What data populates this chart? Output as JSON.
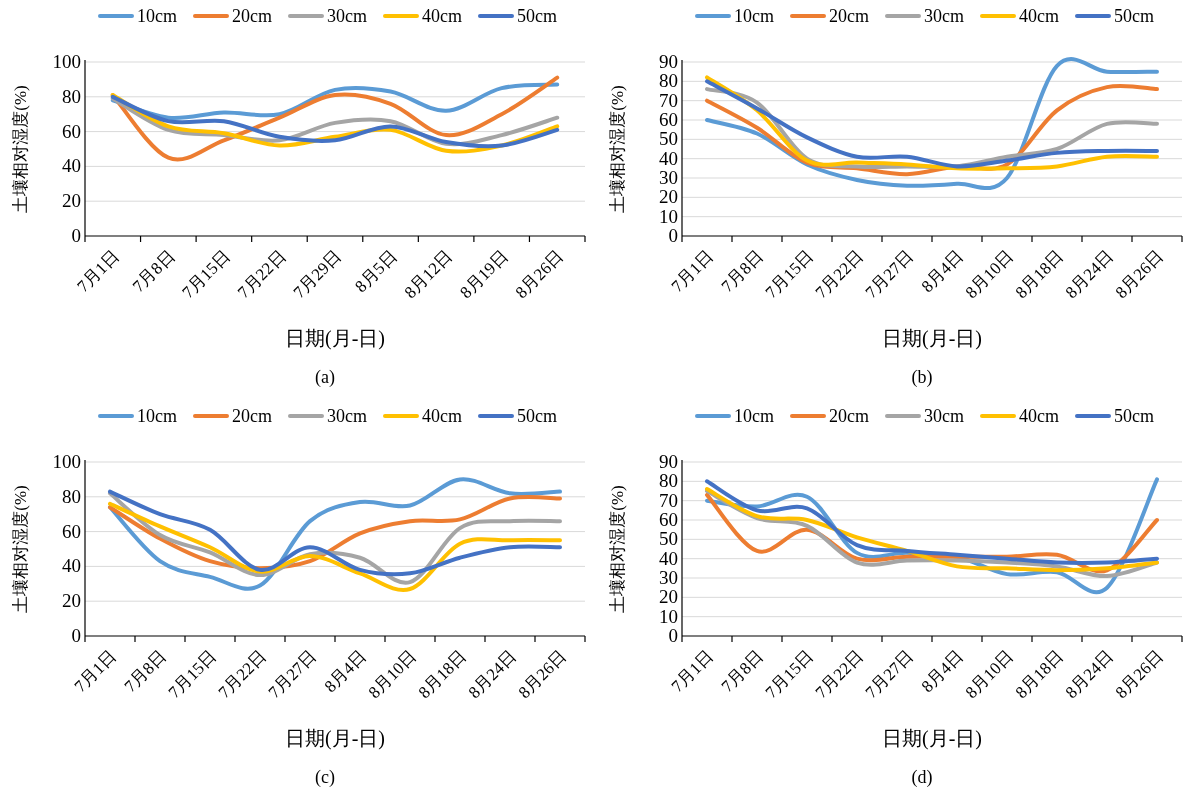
{
  "chart_data": [
    {
      "type": "line",
      "categories": [
        "7月1日",
        "7月8日",
        "7月15日",
        "7月22日",
        "7月29日",
        "8月5日",
        "8月12日",
        "8月19日",
        "8月26日"
      ],
      "series": [
        {
          "name": "10cm",
          "color": "#5b9bd5",
          "values": [
            78,
            68,
            71,
            70,
            84,
            83,
            72,
            85,
            87
          ]
        },
        {
          "name": "20cm",
          "color": "#ed7d31",
          "values": [
            81,
            45,
            55,
            68,
            81,
            76,
            58,
            70,
            91
          ]
        },
        {
          "name": "30cm",
          "color": "#a5a5a5",
          "values": [
            79,
            61,
            58,
            55,
            65,
            66,
            53,
            58,
            68
          ]
        },
        {
          "name": "40cm",
          "color": "#ffc000",
          "values": [
            81,
            63,
            59,
            52,
            57,
            61,
            49,
            52,
            63
          ]
        },
        {
          "name": "50cm",
          "color": "#4472c4",
          "values": [
            80,
            66,
            66,
            57,
            55,
            63,
            54,
            52,
            61
          ]
        }
      ],
      "xlabel": "日期(月-日)",
      "ylabel": "土壤相对湿度(%)",
      "ylim": [
        0,
        100
      ],
      "yticks": [
        0,
        20,
        40,
        60,
        80,
        100
      ],
      "grid": "y",
      "legend": "top",
      "annotations": [
        "(a)"
      ]
    },
    {
      "type": "line",
      "categories": [
        "7月1日",
        "7月8日",
        "7月15日",
        "7月22日",
        "7月27日",
        "8月4日",
        "8月10日",
        "8月18日",
        "8月24日",
        "8月26日"
      ],
      "series": [
        {
          "name": "10cm",
          "color": "#5b9bd5",
          "values": [
            60,
            53,
            37,
            29,
            26,
            27,
            30,
            88,
            85,
            85
          ]
        },
        {
          "name": "20cm",
          "color": "#ed7d31",
          "values": [
            70,
            56,
            38,
            35,
            32,
            36,
            37,
            65,
            77,
            76
          ]
        },
        {
          "name": "30cm",
          "color": "#a5a5a5",
          "values": [
            76,
            69,
            40,
            36,
            36,
            36,
            41,
            45,
            58,
            58
          ]
        },
        {
          "name": "40cm",
          "color": "#ffc000",
          "values": [
            82,
            65,
            39,
            38,
            37,
            35,
            35,
            36,
            41,
            41
          ]
        },
        {
          "name": "50cm",
          "color": "#4472c4",
          "values": [
            80,
            66,
            51,
            41,
            41,
            36,
            39,
            43,
            44,
            44
          ]
        }
      ],
      "xlabel": "日期(月-日)",
      "ylabel": "土壤相对湿度(%)",
      "ylim": [
        0,
        90
      ],
      "yticks": [
        0,
        10,
        20,
        30,
        40,
        50,
        60,
        70,
        80,
        90
      ],
      "grid": "y",
      "legend": "top",
      "annotations": [
        "(b)"
      ]
    },
    {
      "type": "line",
      "categories": [
        "7月1日",
        "7月8日",
        "7月15日",
        "7月22日",
        "7月27日",
        "8月4日",
        "8月10日",
        "8月18日",
        "8月24日",
        "8月26日"
      ],
      "series": [
        {
          "name": "10cm",
          "color": "#5b9bd5",
          "values": [
            74,
            43,
            34,
            29,
            66,
            77,
            75,
            90,
            82,
            83
          ]
        },
        {
          "name": "20cm",
          "color": "#ed7d31",
          "values": [
            74,
            56,
            43,
            39,
            43,
            59,
            66,
            67,
            79,
            79
          ]
        },
        {
          "name": "30cm",
          "color": "#a5a5a5",
          "values": [
            82,
            58,
            48,
            35,
            47,
            45,
            31,
            62,
            66,
            66
          ]
        },
        {
          "name": "40cm",
          "color": "#ffc000",
          "values": [
            76,
            63,
            51,
            37,
            46,
            36,
            27,
            53,
            55,
            55
          ]
        },
        {
          "name": "50cm",
          "color": "#4472c4",
          "values": [
            83,
            70,
            61,
            38,
            51,
            38,
            36,
            45,
            51,
            51
          ]
        }
      ],
      "xlabel": "日期(月-日)",
      "ylabel": "土壤相对湿度(%)",
      "ylim": [
        0,
        100
      ],
      "yticks": [
        0,
        20,
        40,
        60,
        80,
        100
      ],
      "grid": "y",
      "legend": "top",
      "annotations": [
        "(c)"
      ]
    },
    {
      "type": "line",
      "categories": [
        "7月1日",
        "7月8日",
        "7月15日",
        "7月22日",
        "7月27日",
        "8月4日",
        "8月10日",
        "8月18日",
        "8月24日",
        "8月26日"
      ],
      "series": [
        {
          "name": "10cm",
          "color": "#5b9bd5",
          "values": [
            70,
            67,
            72,
            43,
            43,
            41,
            32,
            33,
            25,
            81
          ]
        },
        {
          "name": "20cm",
          "color": "#ed7d31",
          "values": [
            73,
            44,
            55,
            40,
            41,
            41,
            41,
            42,
            34,
            60
          ]
        },
        {
          "name": "30cm",
          "color": "#a5a5a5",
          "values": [
            75,
            61,
            57,
            38,
            39,
            39,
            38,
            36,
            31,
            38
          ]
        },
        {
          "name": "40cm",
          "color": "#ffc000",
          "values": [
            76,
            62,
            60,
            51,
            44,
            36,
            35,
            34,
            35,
            38
          ]
        },
        {
          "name": "50cm",
          "color": "#4472c4",
          "values": [
            80,
            65,
            66,
            47,
            44,
            42,
            40,
            38,
            38,
            40
          ]
        }
      ],
      "xlabel": "日期(月-日)",
      "ylabel": "土壤相对湿度(%)",
      "ylim": [
        0,
        90
      ],
      "yticks": [
        0,
        10,
        20,
        30,
        40,
        50,
        60,
        70,
        80,
        90
      ],
      "grid": "y",
      "legend": "top",
      "annotations": [
        "(d)"
      ]
    }
  ]
}
